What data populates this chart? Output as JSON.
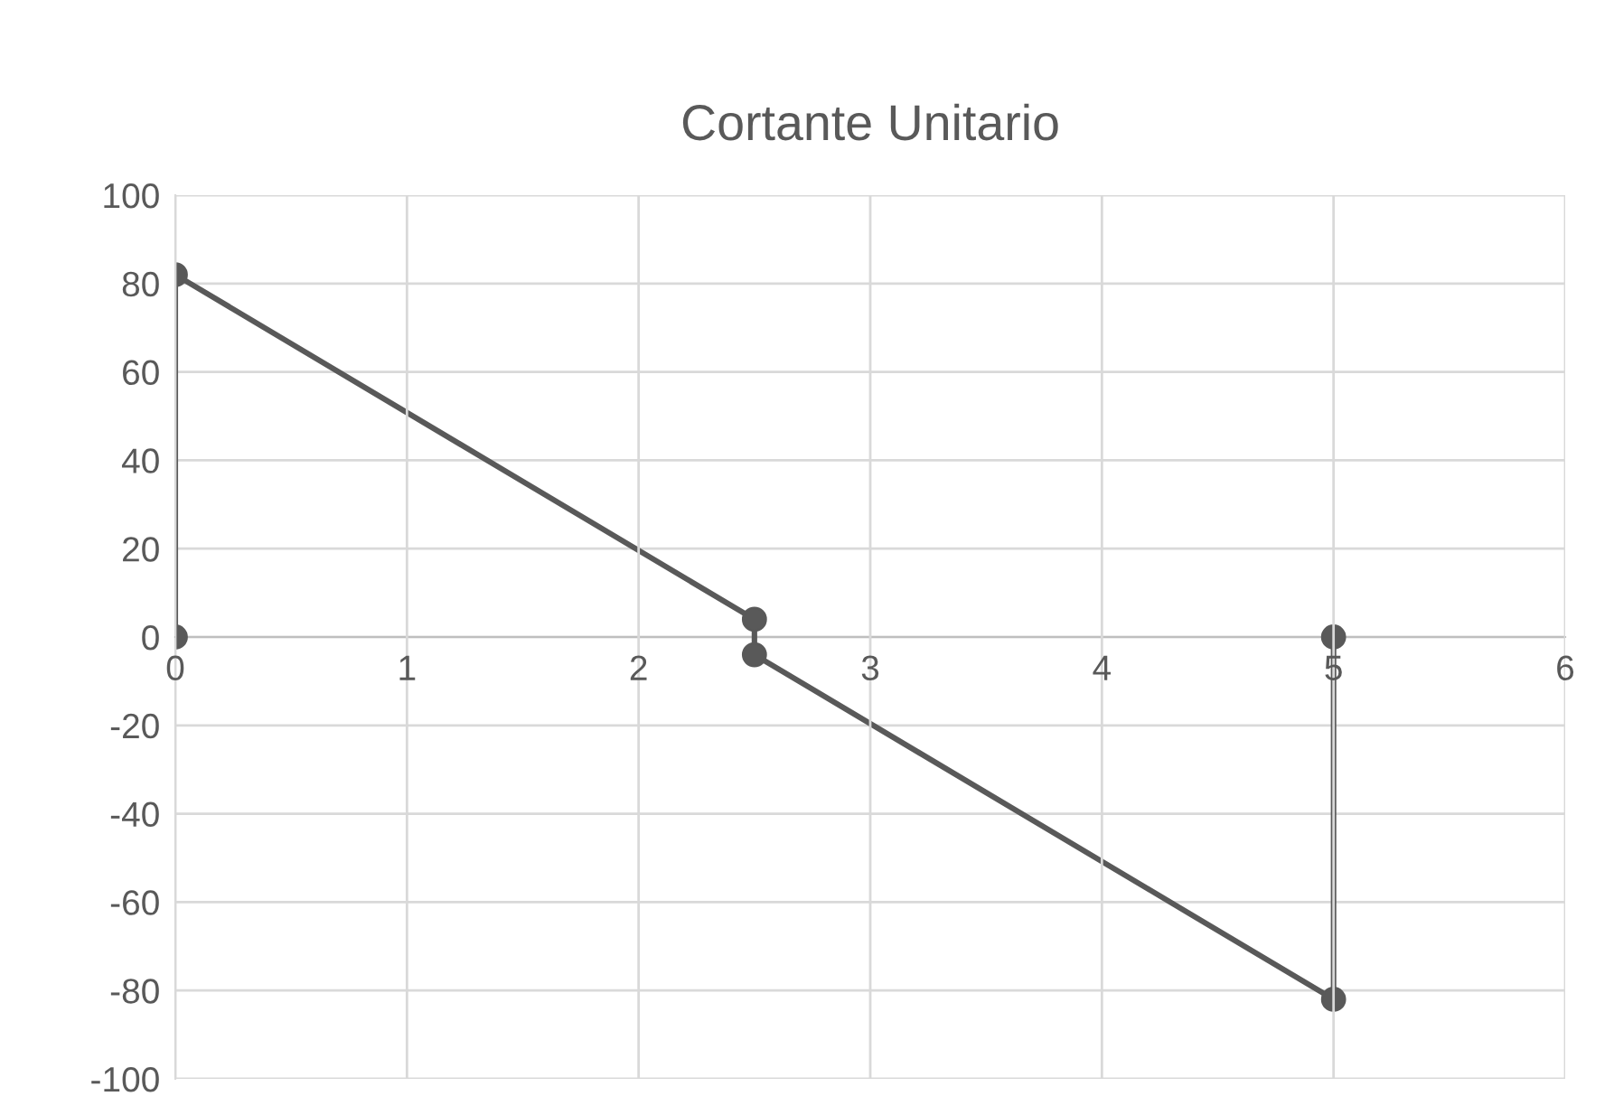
{
  "chart_data": {
    "type": "line",
    "title": "Cortante Unitario",
    "x": [
      0,
      0,
      2.5,
      2.5,
      5,
      5
    ],
    "series": [
      {
        "color": "#595959",
        "values": [
          0,
          82,
          4,
          -4,
          -82,
          0
        ]
      }
    ],
    "xlim": [
      0,
      6
    ],
    "xticks": [
      0,
      1,
      2,
      3,
      4,
      5,
      6
    ],
    "ylim": [
      -100,
      100
    ],
    "yticks": [
      -100,
      -80,
      -60,
      -40,
      -20,
      0,
      20,
      40,
      60,
      80,
      100
    ],
    "grid": true,
    "marker": "circle",
    "line_style": "solid"
  }
}
